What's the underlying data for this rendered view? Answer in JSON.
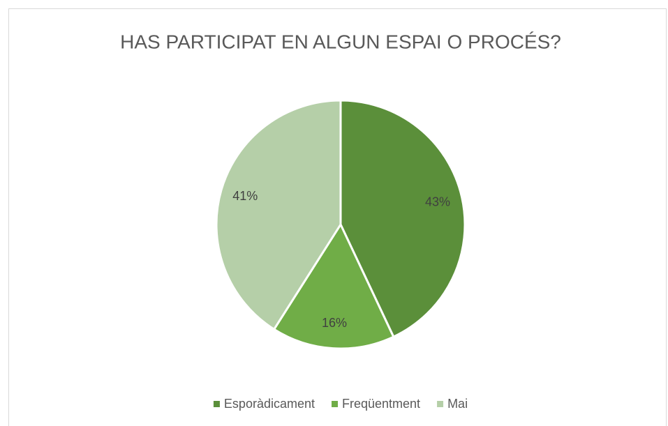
{
  "chart_data": {
    "type": "pie",
    "title": "HAS PARTICIPAT EN ALGUN ESPAI O PROCÉS?",
    "categories": [
      "Esporàdicament",
      "Freqüentment",
      "Mai"
    ],
    "values": [
      43,
      16,
      41
    ],
    "value_labels": [
      "43%",
      "16%",
      "41%"
    ],
    "colors": [
      "#5b8f3a",
      "#70ad47",
      "#b5cfa8"
    ],
    "legend": "bottom"
  }
}
